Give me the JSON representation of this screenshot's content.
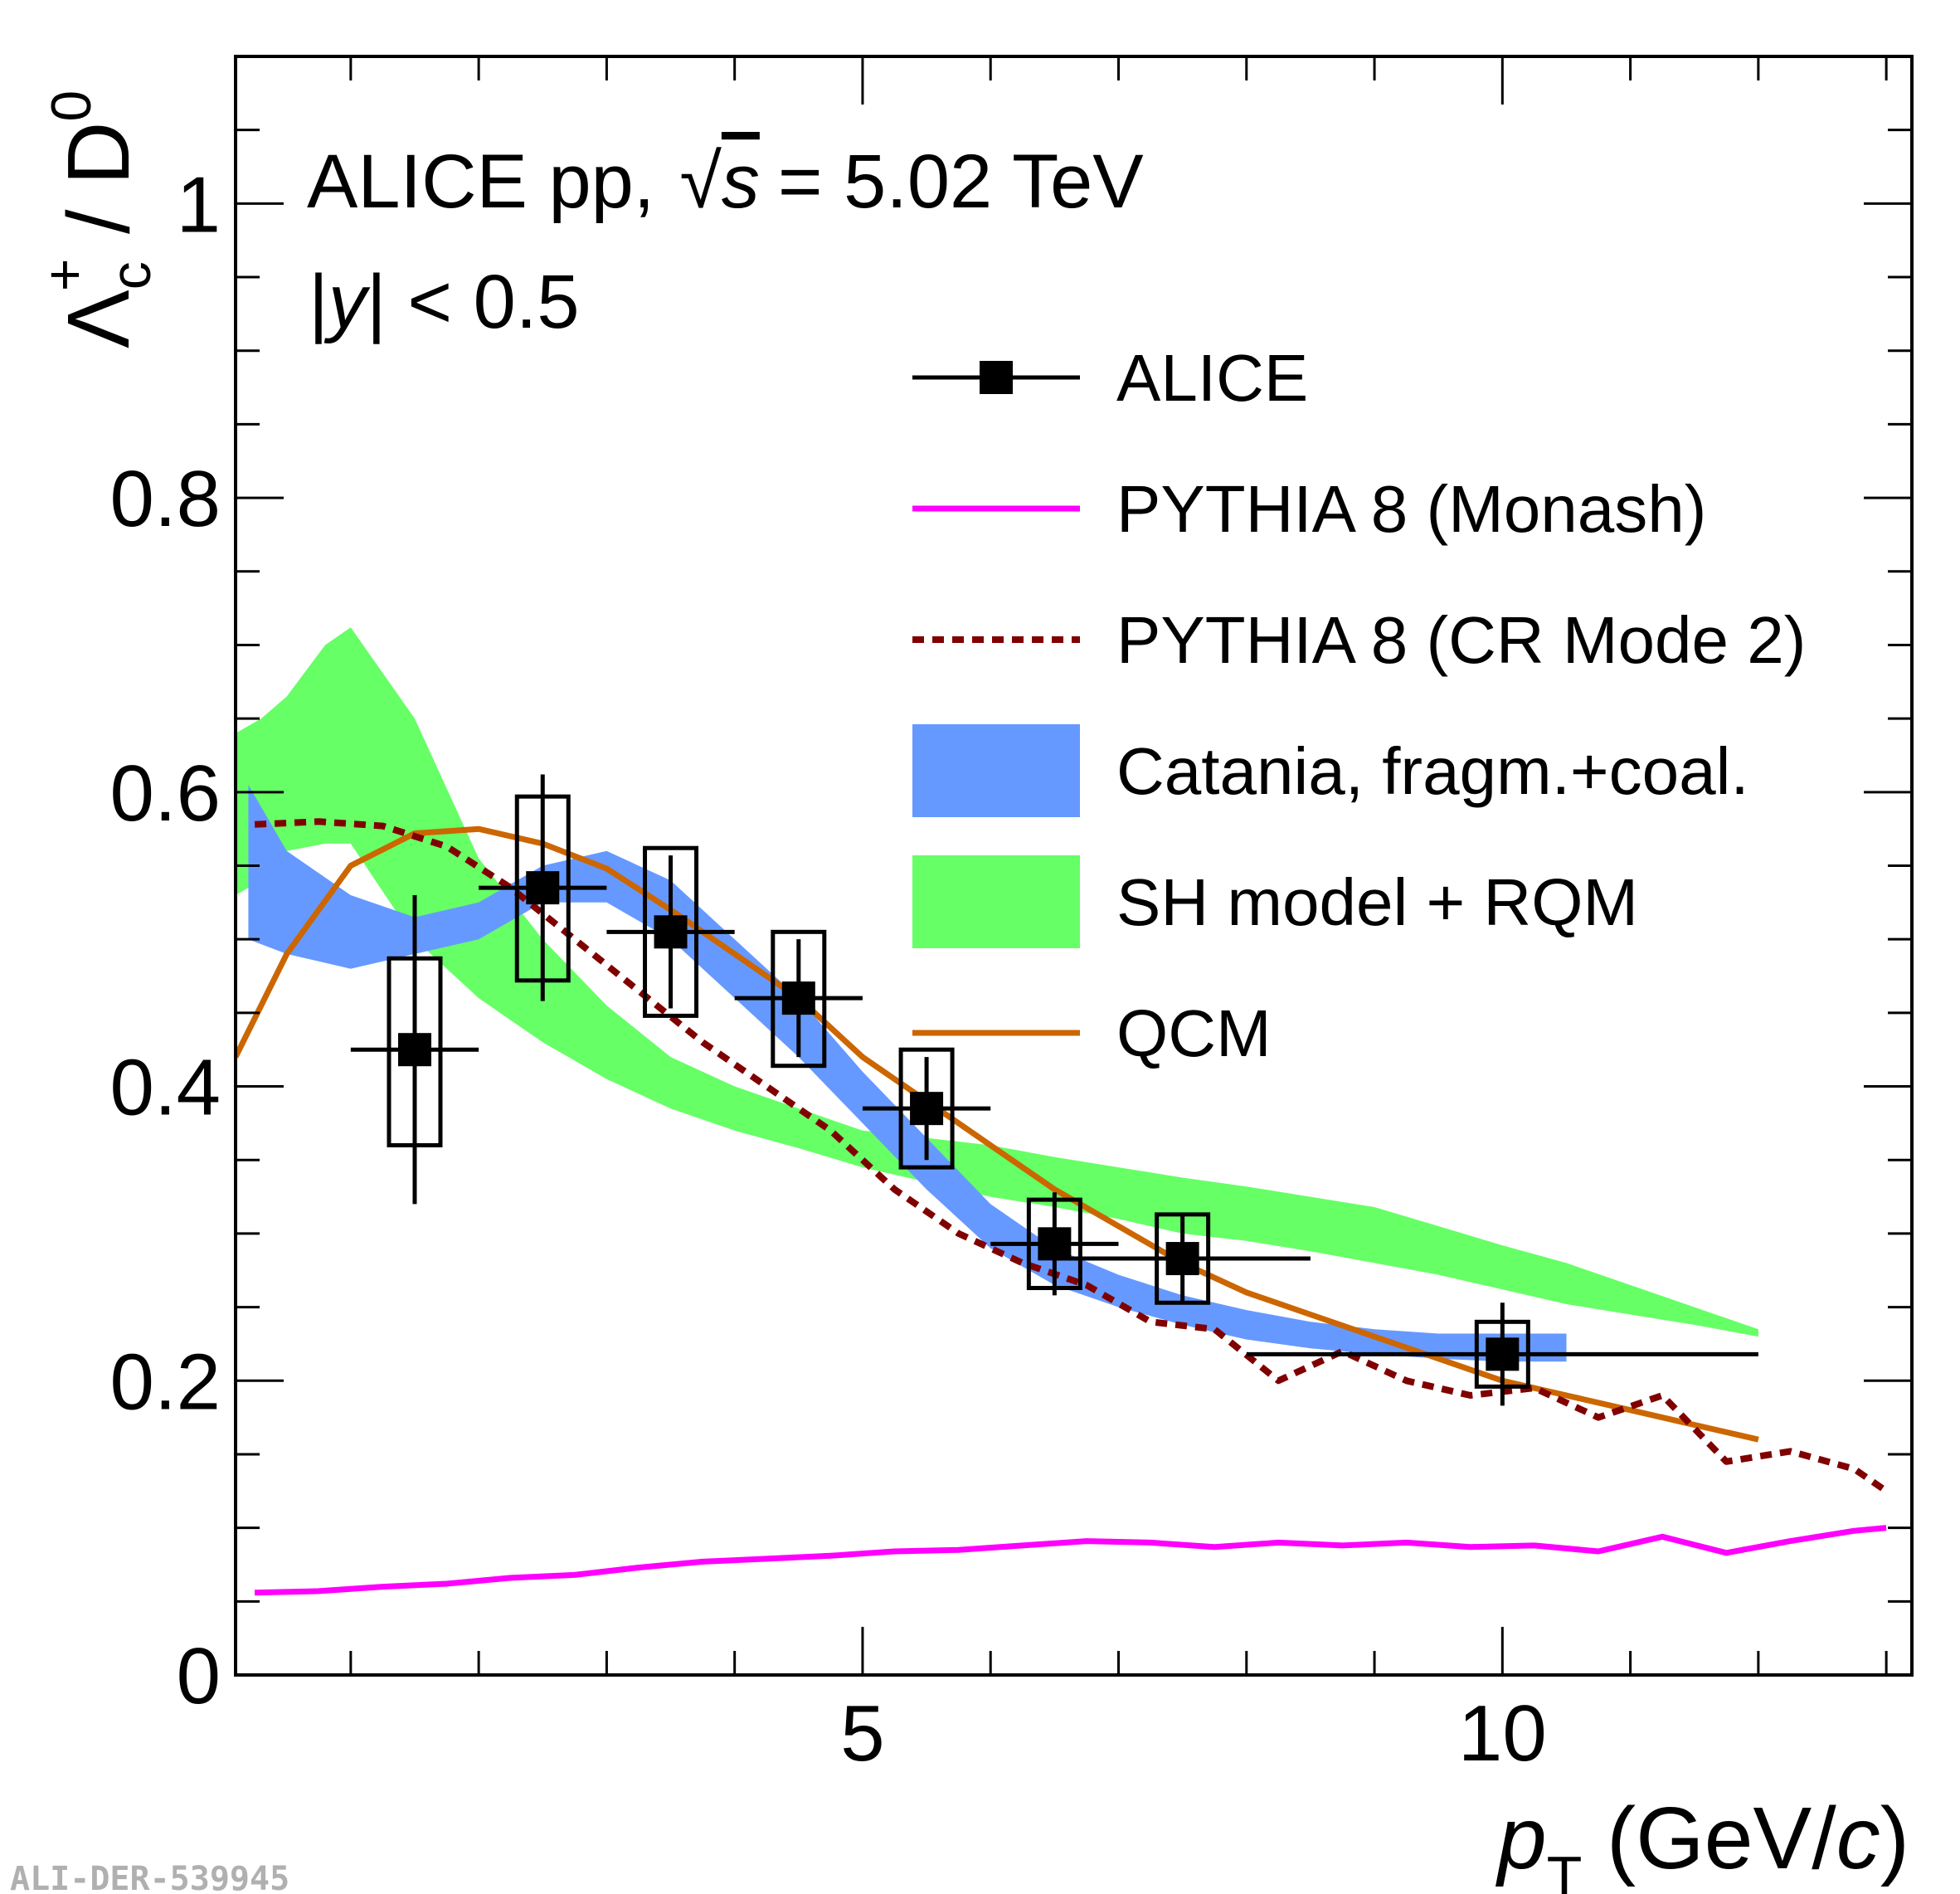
{
  "chart_data": {
    "type": "scatter",
    "title": "",
    "xlabel": "p_T (GeV/c)",
    "xlabel_parts": {
      "var": "p",
      "sub": "T",
      "unit_open": " (GeV/",
      "unit_var": "c",
      "unit_close": ")"
    },
    "ylabel": "Λc+ / D0",
    "ylabel_parts": {
      "base": "Λ",
      "sub": "c",
      "sup": "+",
      "rest": " / D",
      "sup2": "0"
    },
    "xlim": [
      0.1,
      13.2
    ],
    "ylim": [
      0,
      1.1
    ],
    "x_ticks": [
      5,
      10
    ],
    "x_tick_labels": [
      "5",
      "10"
    ],
    "y_ticks": [
      0,
      0.2,
      0.4,
      0.6,
      0.8,
      1
    ],
    "y_tick_labels": [
      "0",
      "0.2",
      "0.4",
      "0.6",
      "0.8",
      "1"
    ],
    "annotations": {
      "line1_prefix": "ALICE pp,",
      "line1_sqrt": "√",
      "line1_s": "s",
      "line1_suffix": "= 5.02 TeV",
      "line2_open": "|",
      "line2_var": "y",
      "line2_close": "| < 0.5"
    },
    "watermark": "ALI-DER-539945",
    "legend": [
      {
        "label": "ALICE",
        "style": "marker",
        "color": "#000000"
      },
      {
        "label": "PYTHIA 8 (Monash)",
        "style": "line",
        "color": "#ff00ff"
      },
      {
        "label": "PYTHIA 8 (CR Mode 2)",
        "style": "dotted",
        "color": "#800000"
      },
      {
        "label": "Catania, fragm.+coal.",
        "style": "band",
        "color": "#6699ff"
      },
      {
        "label": "SH model + RQM",
        "style": "band",
        "color": "#66ff66"
      },
      {
        "label": "QCM",
        "style": "line",
        "color": "#cc6600"
      }
    ],
    "series": [
      {
        "name": "ALICE",
        "type": "points",
        "color": "#000000",
        "points": [
          {
            "x": 1.5,
            "y": 0.425,
            "xerr": [
              0.5,
              0.5
            ],
            "stat": [
              0.105,
              0.105
            ],
            "syst": [
              0.065,
              0.062
            ]
          },
          {
            "x": 2.5,
            "y": 0.535,
            "xerr": [
              0.5,
              0.5
            ],
            "stat": [
              0.077,
              0.077
            ],
            "syst": [
              0.063,
              0.062
            ]
          },
          {
            "x": 3.5,
            "y": 0.505,
            "xerr": [
              0.5,
              0.5
            ],
            "stat": [
              0.052,
              0.052
            ],
            "syst": [
              0.057,
              0.057
            ]
          },
          {
            "x": 4.5,
            "y": 0.46,
            "xerr": [
              0.5,
              0.5
            ],
            "stat": [
              0.04,
              0.04
            ],
            "syst": [
              0.046,
              0.045
            ]
          },
          {
            "x": 5.5,
            "y": 0.385,
            "xerr": [
              0.5,
              0.5
            ],
            "stat": [
              0.035,
              0.035
            ],
            "syst": [
              0.04,
              0.04
            ]
          },
          {
            "x": 6.5,
            "y": 0.293,
            "xerr": [
              0.5,
              0.5
            ],
            "stat": [
              0.035,
              0.035
            ],
            "syst": [
              0.03,
              0.03
            ]
          },
          {
            "x": 7.5,
            "y": 0.283,
            "xerr": [
              1.0,
              1.0
            ],
            "stat": [
              0.03,
              0.03
            ],
            "syst": [
              0.03,
              0.03
            ]
          },
          {
            "x": 10.0,
            "y": 0.218,
            "xerr": [
              2.0,
              2.0
            ],
            "stat": [
              0.035,
              0.035
            ],
            "syst": [
              0.022,
              0.022
            ]
          }
        ]
      },
      {
        "name": "PYTHIA 8 (Monash)",
        "type": "line",
        "color": "#ff00ff",
        "x": [
          0.25,
          0.75,
          1.25,
          1.75,
          2.25,
          2.75,
          3.25,
          3.75,
          4.25,
          4.75,
          5.25,
          5.75,
          6.25,
          6.75,
          7.25,
          7.75,
          8.25,
          8.75,
          9.25,
          9.75,
          10.25,
          10.75,
          11.25,
          11.75,
          12.25,
          12.75,
          13.0
        ],
        "y": [
          0.056,
          0.057,
          0.06,
          0.062,
          0.066,
          0.068,
          0.073,
          0.077,
          0.079,
          0.081,
          0.084,
          0.085,
          0.088,
          0.091,
          0.09,
          0.087,
          0.09,
          0.088,
          0.09,
          0.087,
          0.088,
          0.084,
          0.094,
          0.083,
          0.091,
          0.098,
          0.1
        ]
      },
      {
        "name": "PYTHIA 8 (CR Mode 2)",
        "type": "dotted",
        "color": "#800000",
        "x": [
          0.25,
          0.75,
          1.25,
          1.75,
          2.25,
          2.75,
          3.25,
          3.75,
          4.25,
          4.75,
          5.25,
          5.75,
          6.25,
          6.75,
          7.25,
          7.75,
          8.25,
          8.75,
          9.25,
          9.75,
          10.25,
          10.75,
          11.25,
          11.75,
          12.25,
          12.75,
          13.0
        ],
        "y": [
          0.578,
          0.58,
          0.577,
          0.563,
          0.535,
          0.5,
          0.465,
          0.43,
          0.4,
          0.37,
          0.33,
          0.3,
          0.28,
          0.265,
          0.24,
          0.235,
          0.2,
          0.22,
          0.2,
          0.19,
          0.195,
          0.175,
          0.19,
          0.145,
          0.152,
          0.14,
          0.125
        ]
      },
      {
        "name": "QCM",
        "type": "line",
        "color": "#cc6600",
        "x": [
          0.1,
          0.5,
          1.0,
          1.5,
          2.0,
          2.5,
          3.0,
          3.5,
          4.0,
          4.5,
          5.0,
          5.5,
          6.0,
          6.5,
          7.0,
          7.5,
          8.0,
          8.5,
          9.0,
          9.5,
          10.0,
          10.5,
          11.0,
          11.5,
          12.0
        ],
        "y": [
          0.42,
          0.49,
          0.55,
          0.572,
          0.575,
          0.565,
          0.548,
          0.52,
          0.49,
          0.46,
          0.42,
          0.39,
          0.36,
          0.33,
          0.305,
          0.28,
          0.26,
          0.245,
          0.23,
          0.215,
          0.2,
          0.19,
          0.18,
          0.17,
          0.16
        ]
      },
      {
        "name": "Catania, fragm.+coal.",
        "type": "band",
        "color": "#6699ff",
        "x": [
          0.2,
          0.5,
          1.0,
          1.5,
          2.0,
          2.5,
          3.0,
          3.5,
          4.0,
          4.5,
          5.0,
          5.5,
          6.0,
          6.5,
          7.0,
          7.5,
          8.0,
          8.5,
          9.0,
          9.5,
          10.0,
          10.5
        ],
        "y_low": [
          0.5,
          0.49,
          0.48,
          0.49,
          0.5,
          0.525,
          0.525,
          0.5,
          0.46,
          0.42,
          0.375,
          0.33,
          0.29,
          0.265,
          0.25,
          0.238,
          0.228,
          0.222,
          0.218,
          0.215,
          0.213,
          0.213
        ],
        "y_high": [
          0.605,
          0.56,
          0.53,
          0.515,
          0.525,
          0.55,
          0.56,
          0.54,
          0.5,
          0.46,
          0.41,
          0.365,
          0.32,
          0.29,
          0.272,
          0.258,
          0.248,
          0.24,
          0.235,
          0.232,
          0.232,
          0.232
        ]
      },
      {
        "name": "SH model + RQM",
        "type": "band",
        "color": "#66ff66",
        "x": [
          0.1,
          0.3,
          0.5,
          0.8,
          1.0,
          1.5,
          2.0,
          2.5,
          3.0,
          3.5,
          4.0,
          4.5,
          5.0,
          5.5,
          6.0,
          6.5,
          7.0,
          7.5,
          8.0,
          8.5,
          9.0,
          9.5,
          10.0,
          10.5,
          11.0,
          11.5,
          12.0
        ],
        "y_low": [
          0.53,
          0.54,
          0.56,
          0.565,
          0.565,
          0.5,
          0.46,
          0.43,
          0.405,
          0.385,
          0.37,
          0.358,
          0.345,
          0.335,
          0.325,
          0.318,
          0.31,
          0.3,
          0.295,
          0.288,
          0.28,
          0.272,
          0.262,
          0.252,
          0.245,
          0.238,
          0.23
        ],
        "y_high": [
          0.64,
          0.65,
          0.665,
          0.7,
          0.712,
          0.65,
          0.555,
          0.5,
          0.455,
          0.42,
          0.4,
          0.385,
          0.37,
          0.365,
          0.36,
          0.352,
          0.345,
          0.338,
          0.332,
          0.325,
          0.318,
          0.305,
          0.292,
          0.28,
          0.265,
          0.25,
          0.235
        ]
      }
    ]
  }
}
